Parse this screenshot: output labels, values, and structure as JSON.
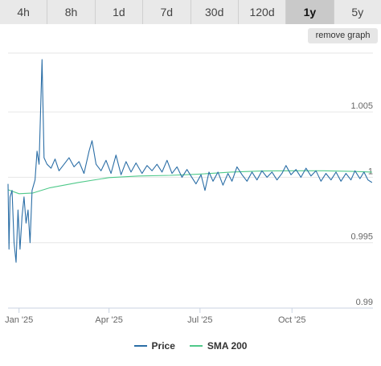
{
  "tabs": [
    {
      "label": "4h"
    },
    {
      "label": "8h"
    },
    {
      "label": "1d"
    },
    {
      "label": "7d"
    },
    {
      "label": "30d"
    },
    {
      "label": "120d"
    },
    {
      "label": "1y",
      "active": true
    },
    {
      "label": "5y"
    }
  ],
  "remove_graph_label": "remove graph",
  "colors": {
    "price": "#2b6ea6",
    "sma": "#4fc98a",
    "grid": "#e6e6e6",
    "axis": "#c8d2e0"
  },
  "chart_data": {
    "type": "line",
    "x_tick_labels": [
      "Jan '25",
      "Apr '25",
      "Jul '25",
      "Oct '25"
    ],
    "y_tick_labels": [
      "1.005",
      "1",
      "0.995",
      "0.99"
    ],
    "ylim": [
      0.99,
      1.0095
    ],
    "grid": true,
    "legend": "bottom-center",
    "series": [
      {
        "name": "Price",
        "points": [
          [
            "2024-12-21",
            0.9995
          ],
          [
            "2024-12-22",
            0.9945
          ],
          [
            "2024-12-23",
            0.9985
          ],
          [
            "2024-12-25",
            0.999
          ],
          [
            "2024-12-27",
            0.995
          ],
          [
            "2024-12-29",
            0.9935
          ],
          [
            "2024-12-31",
            0.9975
          ],
          [
            "2025-01-02",
            0.9945
          ],
          [
            "2025-01-04",
            0.997
          ],
          [
            "2025-01-06",
            0.9985
          ],
          [
            "2025-01-08",
            0.9965
          ],
          [
            "2025-01-10",
            0.9975
          ],
          [
            "2025-01-12",
            0.995
          ],
          [
            "2025-01-14",
            0.999
          ],
          [
            "2025-01-17",
            0.9998
          ],
          [
            "2025-01-19",
            1.002
          ],
          [
            "2025-01-21",
            1.001
          ],
          [
            "2025-01-24",
            1.009
          ],
          [
            "2025-01-26",
            1.0015
          ],
          [
            "2025-01-29",
            1.001
          ],
          [
            "2025-02-02",
            1.0007
          ],
          [
            "2025-02-06",
            1.0014
          ],
          [
            "2025-02-10",
            1.0005
          ],
          [
            "2025-02-15",
            1.001
          ],
          [
            "2025-02-20",
            1.0015
          ],
          [
            "2025-02-25",
            1.0008
          ],
          [
            "2025-03-02",
            1.0012
          ],
          [
            "2025-03-07",
            1.0003
          ],
          [
            "2025-03-12",
            1.002
          ],
          [
            "2025-03-15",
            1.0028
          ],
          [
            "2025-03-19",
            1.001
          ],
          [
            "2025-03-24",
            1.0005
          ],
          [
            "2025-03-29",
            1.0013
          ],
          [
            "2025-04-03",
            1.0003
          ],
          [
            "2025-04-08",
            1.0017
          ],
          [
            "2025-04-13",
            1.0002
          ],
          [
            "2025-04-18",
            1.0012
          ],
          [
            "2025-04-23",
            1.0004
          ],
          [
            "2025-04-28",
            1.0011
          ],
          [
            "2025-05-04",
            1.0003
          ],
          [
            "2025-05-09",
            1.0009
          ],
          [
            "2025-05-14",
            1.0005
          ],
          [
            "2025-05-19",
            1.001
          ],
          [
            "2025-05-24",
            1.0004
          ],
          [
            "2025-05-29",
            1.0013
          ],
          [
            "2025-06-03",
            1.0003
          ],
          [
            "2025-06-08",
            1.0008
          ],
          [
            "2025-06-13",
            1.0
          ],
          [
            "2025-06-18",
            1.0006
          ],
          [
            "2025-06-22",
            1.0001
          ],
          [
            "2025-06-27",
            0.9995
          ],
          [
            "2025-07-02",
            1.0002
          ],
          [
            "2025-07-06",
            0.999
          ],
          [
            "2025-07-10",
            1.0004
          ],
          [
            "2025-07-14",
            0.9997
          ],
          [
            "2025-07-19",
            1.0004
          ],
          [
            "2025-07-24",
            0.9994
          ],
          [
            "2025-07-29",
            1.0003
          ],
          [
            "2025-08-02",
            0.9997
          ],
          [
            "2025-08-07",
            1.0008
          ],
          [
            "2025-08-12",
            1.0002
          ],
          [
            "2025-08-17",
            0.9997
          ],
          [
            "2025-08-22",
            1.0004
          ],
          [
            "2025-08-27",
            0.9998
          ],
          [
            "2025-09-01",
            1.0005
          ],
          [
            "2025-09-06",
            1.0
          ],
          [
            "2025-09-11",
            1.0004
          ],
          [
            "2025-09-16",
            0.9998
          ],
          [
            "2025-09-21",
            1.0003
          ],
          [
            "2025-09-25",
            1.0009
          ],
          [
            "2025-09-30",
            1.0002
          ],
          [
            "2025-10-05",
            1.0006
          ],
          [
            "2025-10-10",
            1.0
          ],
          [
            "2025-10-15",
            1.0007
          ],
          [
            "2025-10-20",
            1.0001
          ],
          [
            "2025-10-25",
            1.0005
          ],
          [
            "2025-10-30",
            0.9997
          ],
          [
            "2025-11-04",
            1.0003
          ],
          [
            "2025-11-09",
            0.9998
          ],
          [
            "2025-11-14",
            1.0004
          ],
          [
            "2025-11-19",
            0.9997
          ],
          [
            "2025-11-24",
            1.0003
          ],
          [
            "2025-11-29",
            0.9998
          ],
          [
            "2025-12-03",
            1.0005
          ],
          [
            "2025-12-08",
            0.9999
          ],
          [
            "2025-12-12",
            1.0004
          ],
          [
            "2025-12-16",
            0.9998
          ],
          [
            "2025-12-20",
            0.9996
          ]
        ]
      },
      {
        "name": "SMA 200",
        "points": [
          [
            "2024-12-21",
            0.99905
          ],
          [
            "2025-01-01",
            0.99875
          ],
          [
            "2025-01-15",
            0.9988
          ],
          [
            "2025-02-01",
            0.9992
          ],
          [
            "2025-03-01",
            0.9996
          ],
          [
            "2025-04-01",
            0.99998
          ],
          [
            "2025-05-01",
            1.0001
          ],
          [
            "2025-06-01",
            1.00015
          ],
          [
            "2025-07-01",
            1.00025
          ],
          [
            "2025-08-01",
            1.0004
          ],
          [
            "2025-09-01",
            1.00048
          ],
          [
            "2025-10-01",
            1.0005
          ],
          [
            "2025-11-01",
            1.0005
          ],
          [
            "2025-12-01",
            1.00045
          ],
          [
            "2025-12-20",
            1.0004
          ]
        ]
      }
    ]
  }
}
